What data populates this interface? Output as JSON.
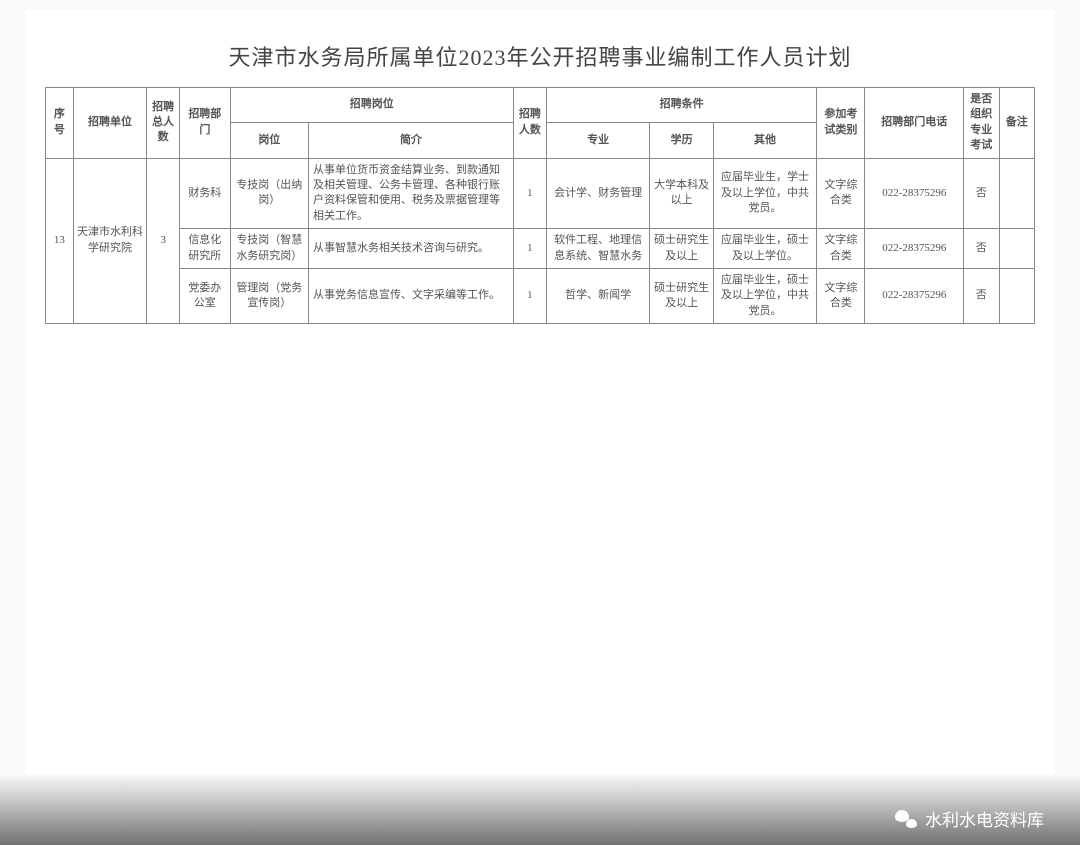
{
  "title": "天津市水务局所属单位2023年公开招聘事业编制工作人员计划",
  "headers": {
    "seq": "序号",
    "unit": "招聘单位",
    "total": "招聘总人数",
    "dept": "招聘部门",
    "position_group": "招聘岗位",
    "position": "岗位",
    "desc": "简介",
    "count": "招聘人数",
    "condition_group": "招聘条件",
    "major": "专业",
    "edu": "学历",
    "other": "其他",
    "exam_type": "参加考试类别",
    "phone": "招聘部门电话",
    "prof_exam": "是否组织专业考试",
    "note": "备注"
  },
  "group": {
    "seq": "13",
    "unit": "天津市水利科学研究院",
    "total": "3"
  },
  "rows": [
    {
      "dept": "财务科",
      "position": "专技岗（出纳岗）",
      "desc": "从事单位货币资金结算业务、到款通知及相关管理、公务卡管理、各种银行账户资料保管和使用、税务及票据管理等相关工作。",
      "count": "1",
      "major": "会计学、财务管理",
      "edu": "大学本科及以上",
      "other": "应届毕业生，学士及以上学位，中共党员。",
      "exam_type": "文字综合类",
      "phone": "022-28375296",
      "prof_exam": "否",
      "note": ""
    },
    {
      "dept": "信息化研究所",
      "position": "专技岗（智慧水务研究岗）",
      "desc": "从事智慧水务相关技术咨询与研究。",
      "count": "1",
      "major": "软件工程、地理信息系统、智慧水务",
      "edu": "硕士研究生及以上",
      "other": "应届毕业生，硕士及以上学位。",
      "exam_type": "文字综合类",
      "phone": "022-28375296",
      "prof_exam": "否",
      "note": ""
    },
    {
      "dept": "党委办公室",
      "position": "管理岗（党务宣传岗）",
      "desc": "从事党务信息宣传、文字采编等工作。",
      "count": "1",
      "major": "哲学、新闻学",
      "edu": "硕士研究生及以上",
      "other": "应届毕业生，硕士及以上学位，中共党员。",
      "exam_type": "文字综合类",
      "phone": "022-28375296",
      "prof_exam": "否",
      "note": ""
    }
  ],
  "footer": "水利水电资料库",
  "colors": {
    "page_bg": "#f9f9f9",
    "border": "#888888",
    "text": "#555555"
  }
}
